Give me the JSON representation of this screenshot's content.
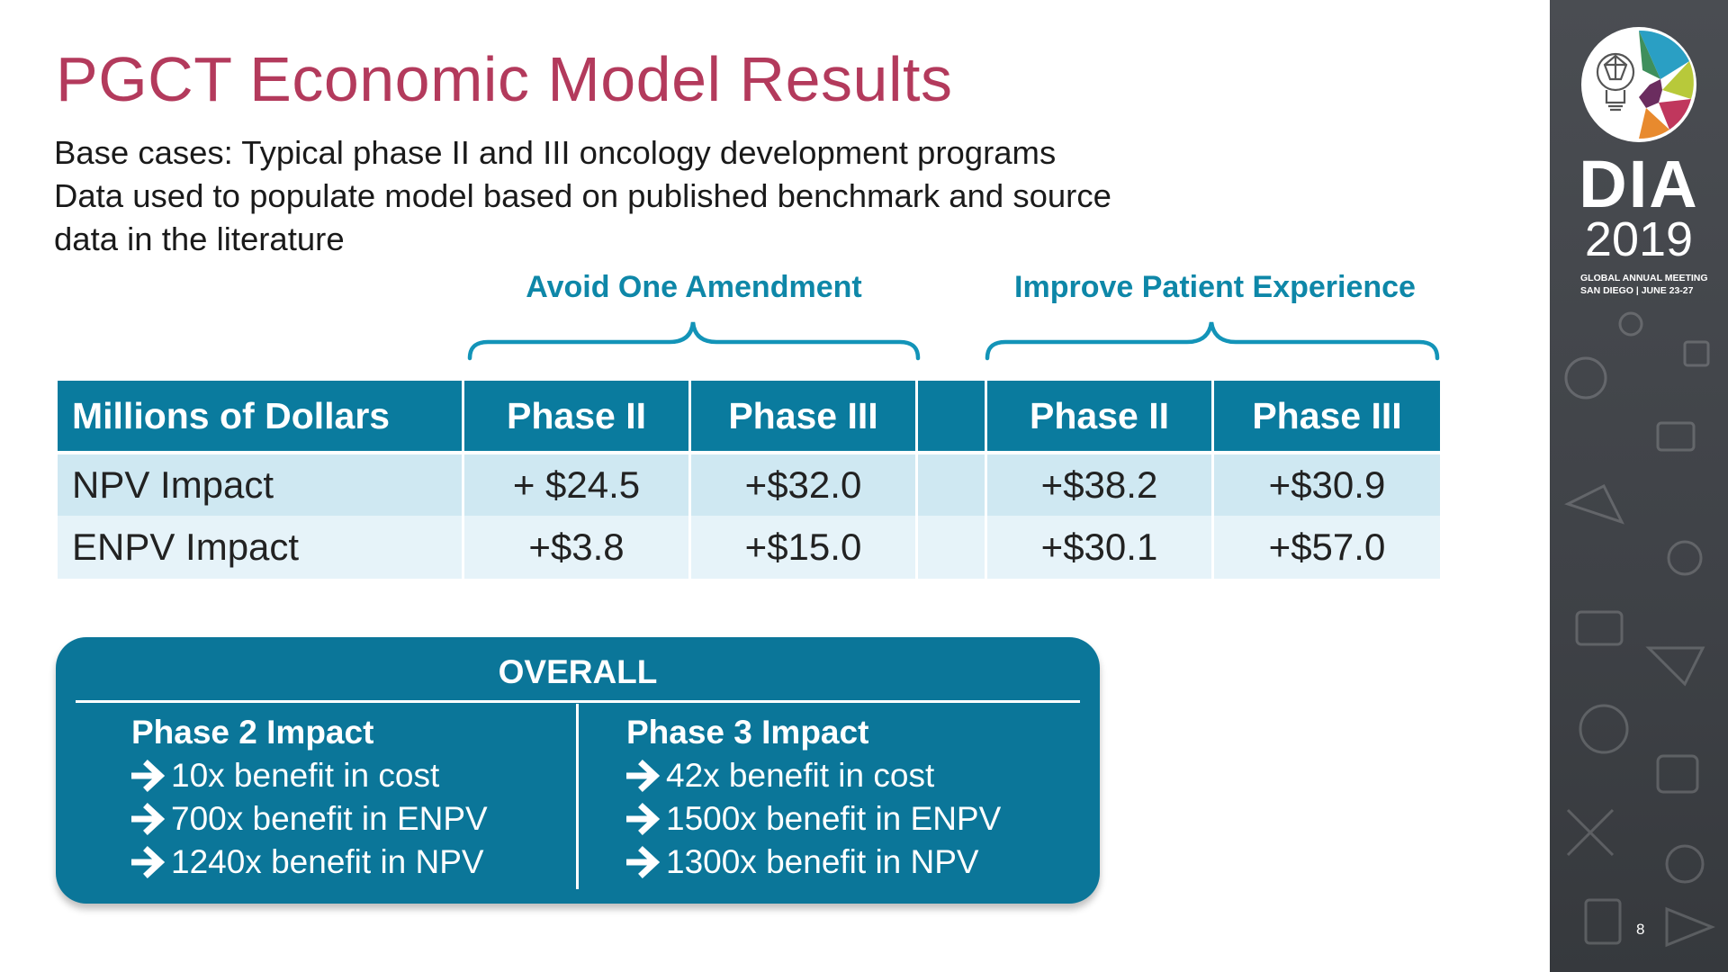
{
  "slide": {
    "title": "PGCT Economic Model Results",
    "subtitle_lines": [
      "Base cases: Typical phase II and III oncology development programs",
      "Data used to populate model based on published benchmark and source",
      "data in the literature"
    ],
    "group_labels": [
      "Avoid One Amendment",
      "Improve Patient Experience"
    ],
    "accent_color": "#0a7b9e",
    "title_color": "#b33a5c"
  },
  "table": {
    "headers": [
      "Millions of Dollars",
      "Phase II",
      "Phase III",
      "",
      "Phase II",
      "Phase III"
    ],
    "rows": [
      [
        "NPV Impact",
        "+ $24.5",
        "+$32.0",
        "",
        "+$38.2",
        "+$30.9"
      ],
      [
        "ENPV Impact",
        "+$3.8",
        "+$15.0",
        "",
        "+$30.1",
        "+$57.0"
      ]
    ]
  },
  "overall": {
    "title": "OVERALL",
    "left": {
      "heading": "Phase 2 Impact",
      "items": [
        "10x benefit in cost",
        "700x benefit in ENPV",
        "1240x benefit in NPV"
      ]
    },
    "right": {
      "heading": "Phase 3 Impact",
      "items": [
        "42x benefit in cost",
        "1500x benefit in ENPV",
        "1300x benefit in NPV"
      ]
    }
  },
  "sidebar": {
    "brand": "DIA",
    "year": "2019",
    "meeting_line1": "GLOBAL ANNUAL MEETING",
    "meeting_line2": "SAN DIEGO | JUNE 23-27",
    "logo_icon": "lightbulb-head-logo-icon"
  },
  "page_number": "8"
}
